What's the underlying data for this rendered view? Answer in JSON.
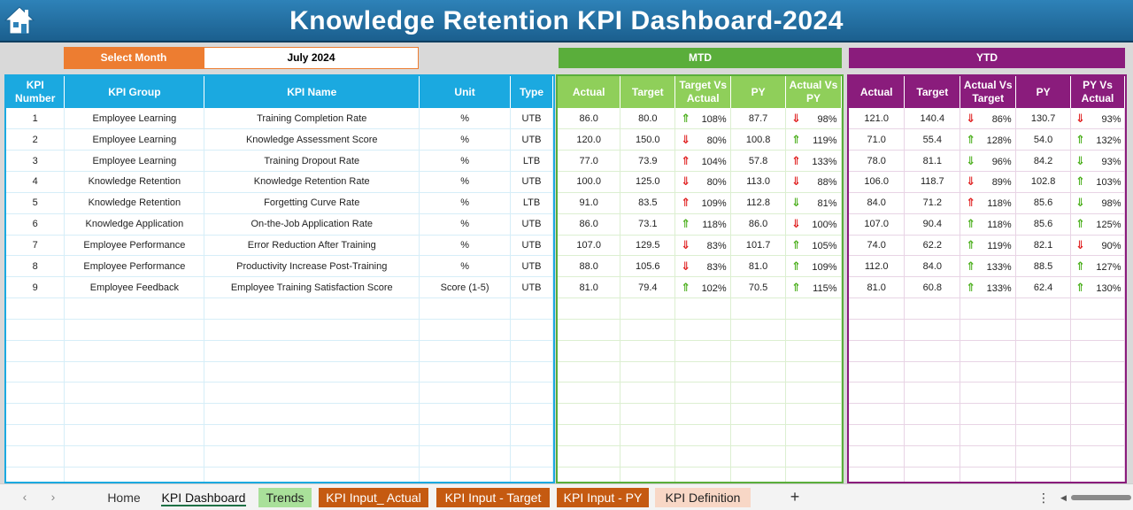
{
  "title": "Knowledge Retention KPI Dashboard-2024",
  "select_month": {
    "label": "Select Month",
    "value": "July 2024"
  },
  "mtd": {
    "heading": "MTD",
    "columns": [
      "Actual",
      "Target",
      "Target Vs Actual",
      "PY",
      "Actual Vs PY"
    ]
  },
  "ytd": {
    "heading": "YTD",
    "columns": [
      "Actual",
      "Target",
      "Actual Vs Target",
      "PY",
      "PY Vs Actual"
    ]
  },
  "kpi_columns": [
    "KPI Number",
    "KPI Group",
    "KPI Name",
    "Unit",
    "Type"
  ],
  "rows": [
    {
      "num": "1",
      "group": "Employee Learning",
      "name": "Training Completion Rate",
      "unit": "%",
      "type": "UTB",
      "mtd": {
        "actual": "86.0",
        "target": "80.0",
        "tva": "108%",
        "tva_dir": "up",
        "py": "87.7",
        "avp": "98%",
        "avp_dir": "down"
      },
      "ytd": {
        "actual": "121.0",
        "target": "140.4",
        "avt": "86%",
        "avt_dir": "down",
        "py": "130.7",
        "pva": "93%",
        "pva_dir": "down"
      }
    },
    {
      "num": "2",
      "group": "Employee Learning",
      "name": "Knowledge Assessment Score",
      "unit": "%",
      "type": "UTB",
      "mtd": {
        "actual": "120.0",
        "target": "150.0",
        "tva": "80%",
        "tva_dir": "down",
        "py": "100.8",
        "avp": "119%",
        "avp_dir": "up"
      },
      "ytd": {
        "actual": "71.0",
        "target": "55.4",
        "avt": "128%",
        "avt_dir": "up",
        "py": "54.0",
        "pva": "132%",
        "pva_dir": "up"
      }
    },
    {
      "num": "3",
      "group": "Employee Learning",
      "name": "Training Dropout Rate",
      "unit": "%",
      "type": "LTB",
      "mtd": {
        "actual": "77.0",
        "target": "73.9",
        "tva": "104%",
        "tva_dir": "up-red",
        "py": "57.8",
        "avp": "133%",
        "avp_dir": "up-red"
      },
      "ytd": {
        "actual": "78.0",
        "target": "81.1",
        "avt": "96%",
        "avt_dir": "down-green",
        "py": "84.2",
        "pva": "93%",
        "pva_dir": "down-green"
      }
    },
    {
      "num": "4",
      "group": "Knowledge Retention",
      "name": "Knowledge Retention Rate",
      "unit": "%",
      "type": "UTB",
      "mtd": {
        "actual": "100.0",
        "target": "125.0",
        "tva": "80%",
        "tva_dir": "down",
        "py": "113.0",
        "avp": "88%",
        "avp_dir": "down"
      },
      "ytd": {
        "actual": "106.0",
        "target": "118.7",
        "avt": "89%",
        "avt_dir": "down",
        "py": "102.8",
        "pva": "103%",
        "pva_dir": "up"
      }
    },
    {
      "num": "5",
      "group": "Knowledge Retention",
      "name": "Forgetting Curve Rate",
      "unit": "%",
      "type": "LTB",
      "mtd": {
        "actual": "91.0",
        "target": "83.5",
        "tva": "109%",
        "tva_dir": "up-red",
        "py": "112.8",
        "avp": "81%",
        "avp_dir": "down-green"
      },
      "ytd": {
        "actual": "84.0",
        "target": "71.2",
        "avt": "118%",
        "avt_dir": "up-red",
        "py": "85.6",
        "pva": "98%",
        "pva_dir": "down-green"
      }
    },
    {
      "num": "6",
      "group": "Knowledge Application",
      "name": "On-the-Job Application Rate",
      "unit": "%",
      "type": "UTB",
      "mtd": {
        "actual": "86.0",
        "target": "73.1",
        "tva": "118%",
        "tva_dir": "up",
        "py": "86.0",
        "avp": "100%",
        "avp_dir": "down"
      },
      "ytd": {
        "actual": "107.0",
        "target": "90.4",
        "avt": "118%",
        "avt_dir": "up",
        "py": "85.6",
        "pva": "125%",
        "pva_dir": "up"
      }
    },
    {
      "num": "7",
      "group": "Employee Performance",
      "name": "Error Reduction After Training",
      "unit": "%",
      "type": "UTB",
      "mtd": {
        "actual": "107.0",
        "target": "129.5",
        "tva": "83%",
        "tva_dir": "down",
        "py": "101.7",
        "avp": "105%",
        "avp_dir": "up"
      },
      "ytd": {
        "actual": "74.0",
        "target": "62.2",
        "avt": "119%",
        "avt_dir": "up",
        "py": "82.1",
        "pva": "90%",
        "pva_dir": "down"
      }
    },
    {
      "num": "8",
      "group": "Employee Performance",
      "name": "Productivity Increase Post-Training",
      "unit": "%",
      "type": "UTB",
      "mtd": {
        "actual": "88.0",
        "target": "105.6",
        "tva": "83%",
        "tva_dir": "down",
        "py": "81.0",
        "avp": "109%",
        "avp_dir": "up"
      },
      "ytd": {
        "actual": "112.0",
        "target": "84.0",
        "avt": "133%",
        "avt_dir": "up",
        "py": "88.5",
        "pva": "127%",
        "pva_dir": "up"
      }
    },
    {
      "num": "9",
      "group": "Employee Feedback",
      "name": "Employee Training Satisfaction Score",
      "unit": "Score (1-5)",
      "type": "UTB",
      "mtd": {
        "actual": "81.0",
        "target": "79.4",
        "tva": "102%",
        "tva_dir": "up",
        "py": "70.5",
        "avp": "115%",
        "avp_dir": "up"
      },
      "ytd": {
        "actual": "81.0",
        "target": "60.8",
        "avt": "133%",
        "avt_dir": "up",
        "py": "62.4",
        "pva": "130%",
        "pva_dir": "up"
      }
    }
  ],
  "empty_rows": 9,
  "tabs": [
    {
      "label": "Home",
      "style": "plain"
    },
    {
      "label": "KPI Dashboard",
      "style": "active"
    },
    {
      "label": "Trends",
      "style": "green"
    },
    {
      "label": "KPI Input_ Actual",
      "style": "orange"
    },
    {
      "label": "KPI Input - Target",
      "style": "orange"
    },
    {
      "label": "KPI Input - PY",
      "style": "orange"
    },
    {
      "label": "KPI Definition",
      "style": "peach"
    }
  ],
  "icons": {
    "home": "home-icon",
    "arrow_up": "arrow-up-icon",
    "arrow_down": "arrow-down-icon"
  },
  "colors": {
    "header_blue": "#1ba9e0",
    "mtd_green": "#5aae3b",
    "ytd_purple": "#8a1c7c",
    "select_orange": "#ed7d31",
    "up": "#4caf1d",
    "down": "#e02020"
  }
}
